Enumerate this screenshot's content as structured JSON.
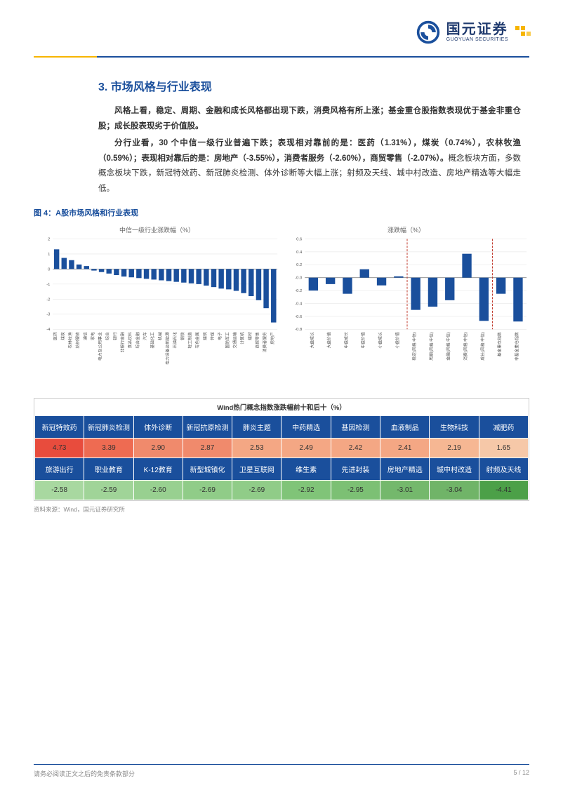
{
  "header": {
    "company_cn": "国元证券",
    "company_en": "GUOYUAN SECURITIES",
    "logo_color": "#1a4f9c",
    "accent_color": "#f7b500"
  },
  "section": {
    "title": "3. 市场风格与行业表现",
    "para1_lead": "风格上看，稳定、周期、金融和成长风格都出现下跌，消费风格有所上涨；基金重仓股指数表现优于基金非重仓股；成长股表现劣于价值股。",
    "para2_lead": "分行业看，30 个中信一级行业普遍下跌；表现相对靠前的是：医药（1.31%），煤炭（0.74%），农林牧渔（0.59%）；表现相对靠后的是：房地产（-3.55%），消费者服务（-2.60%），商贸零售（-2.07%）。",
    "para2_rest": "概念板块方面，多数概念板块下跌，新冠特效药、新冠肺炎检测、体外诊断等大幅上涨；射频及天线、城中村改造、房地产精选等大幅走低。"
  },
  "figure": {
    "caption": "图 4：A股市场风格和行业表现",
    "source": "资料来源：Wind，国元证券研究所"
  },
  "chart_left": {
    "type": "bar",
    "title": "中信一级行业涨跌幅（%）",
    "ylim": [
      -4,
      2
    ],
    "ytick_step": 1,
    "bar_color": "#1a4f9c",
    "grid_color": "#e0e0e0",
    "categories": [
      "医药",
      "煤炭",
      "农林牧渔",
      "纺织服装",
      "通信",
      "家电",
      "电力及公用事业",
      "综合",
      "银行",
      "非银行金融",
      "食品饮料",
      "综合金融",
      "汽车",
      "基础化工",
      "机械",
      "电力设备及新能源",
      "石油石化",
      "钢铁",
      "轻工制造",
      "有色金属",
      "建筑",
      "传媒",
      "电子",
      "国防军工",
      "交通运输",
      "计算机",
      "建材",
      "商贸零售",
      "消费者服务",
      "房地产"
    ],
    "values": [
      1.31,
      0.74,
      0.59,
      0.3,
      0.2,
      -0.1,
      -0.2,
      -0.3,
      -0.4,
      -0.5,
      -0.55,
      -0.6,
      -0.65,
      -0.7,
      -0.75,
      -0.8,
      -0.85,
      -0.9,
      -0.95,
      -1.0,
      -1.1,
      -1.2,
      -1.3,
      -1.35,
      -1.45,
      -1.6,
      -1.8,
      -2.07,
      -2.6,
      -3.55
    ]
  },
  "chart_right": {
    "type": "bar",
    "title": "涨跌幅（%）",
    "ylim": [
      -0.8,
      0.6
    ],
    "ytick_step": 0.2,
    "bar_color": "#1a4f9c",
    "grid_color": "#e0e0e0",
    "dash_divider_color": "#c0392b",
    "categories": [
      "大盘成长",
      "大盘价值",
      "中盘成长",
      "中盘价值",
      "小盘成长",
      "小盘价值",
      "稳定(风格.中信)",
      "周期(风格.中信)",
      "金融(风格.中信)",
      "消费(风格.中信)",
      "成长(风格.中信)",
      "基金重仓指数",
      "非基金重仓指数"
    ],
    "values": [
      -0.2,
      -0.1,
      -0.25,
      0.13,
      -0.12,
      0.02,
      -0.5,
      -0.45,
      -0.35,
      0.37,
      -0.67,
      -0.25,
      -0.68
    ],
    "dividers": [
      6,
      11
    ]
  },
  "heatmap": {
    "title": "Wind热门概念指数涨跌幅前十和后十（%）",
    "top_headers": [
      "新冠特效药",
      "新冠肺炎检测",
      "体外诊断",
      "新冠抗原检测",
      "肺炎主题",
      "中药精选",
      "基因检测",
      "血液制品",
      "生物科技",
      "减肥药"
    ],
    "top_values": [
      4.73,
      3.39,
      2.9,
      2.87,
      2.53,
      2.49,
      2.42,
      2.41,
      2.19,
      1.65
    ],
    "top_colors": [
      "#e84c3d",
      "#ee6b52",
      "#f08a6c",
      "#f08a6c",
      "#f4a784",
      "#f4a784",
      "#f4a784",
      "#f4a784",
      "#f6b793",
      "#f6c8a8"
    ],
    "bot_headers": [
      "旅游出行",
      "职业教育",
      "K-12教育",
      "新型城镇化",
      "卫星互联网",
      "维生素",
      "先进封装",
      "房地产精选",
      "城中村改造",
      "射频及天线"
    ],
    "bot_values": [
      -2.58,
      -2.59,
      -2.6,
      -2.69,
      -2.69,
      -2.92,
      -2.95,
      -3.01,
      -3.04,
      -4.41
    ],
    "bot_colors": [
      "#a8d8a0",
      "#a0d498",
      "#98d090",
      "#90cc88",
      "#90cc88",
      "#80c478",
      "#7cc074",
      "#74b86c",
      "#70b468",
      "#4ca048"
    ],
    "header_bg": "#1a4f9c",
    "header_color": "#ffffff"
  },
  "footer": {
    "disclaimer": "请务必阅读正文之后的免责条款部分",
    "page": "5 / 12"
  }
}
